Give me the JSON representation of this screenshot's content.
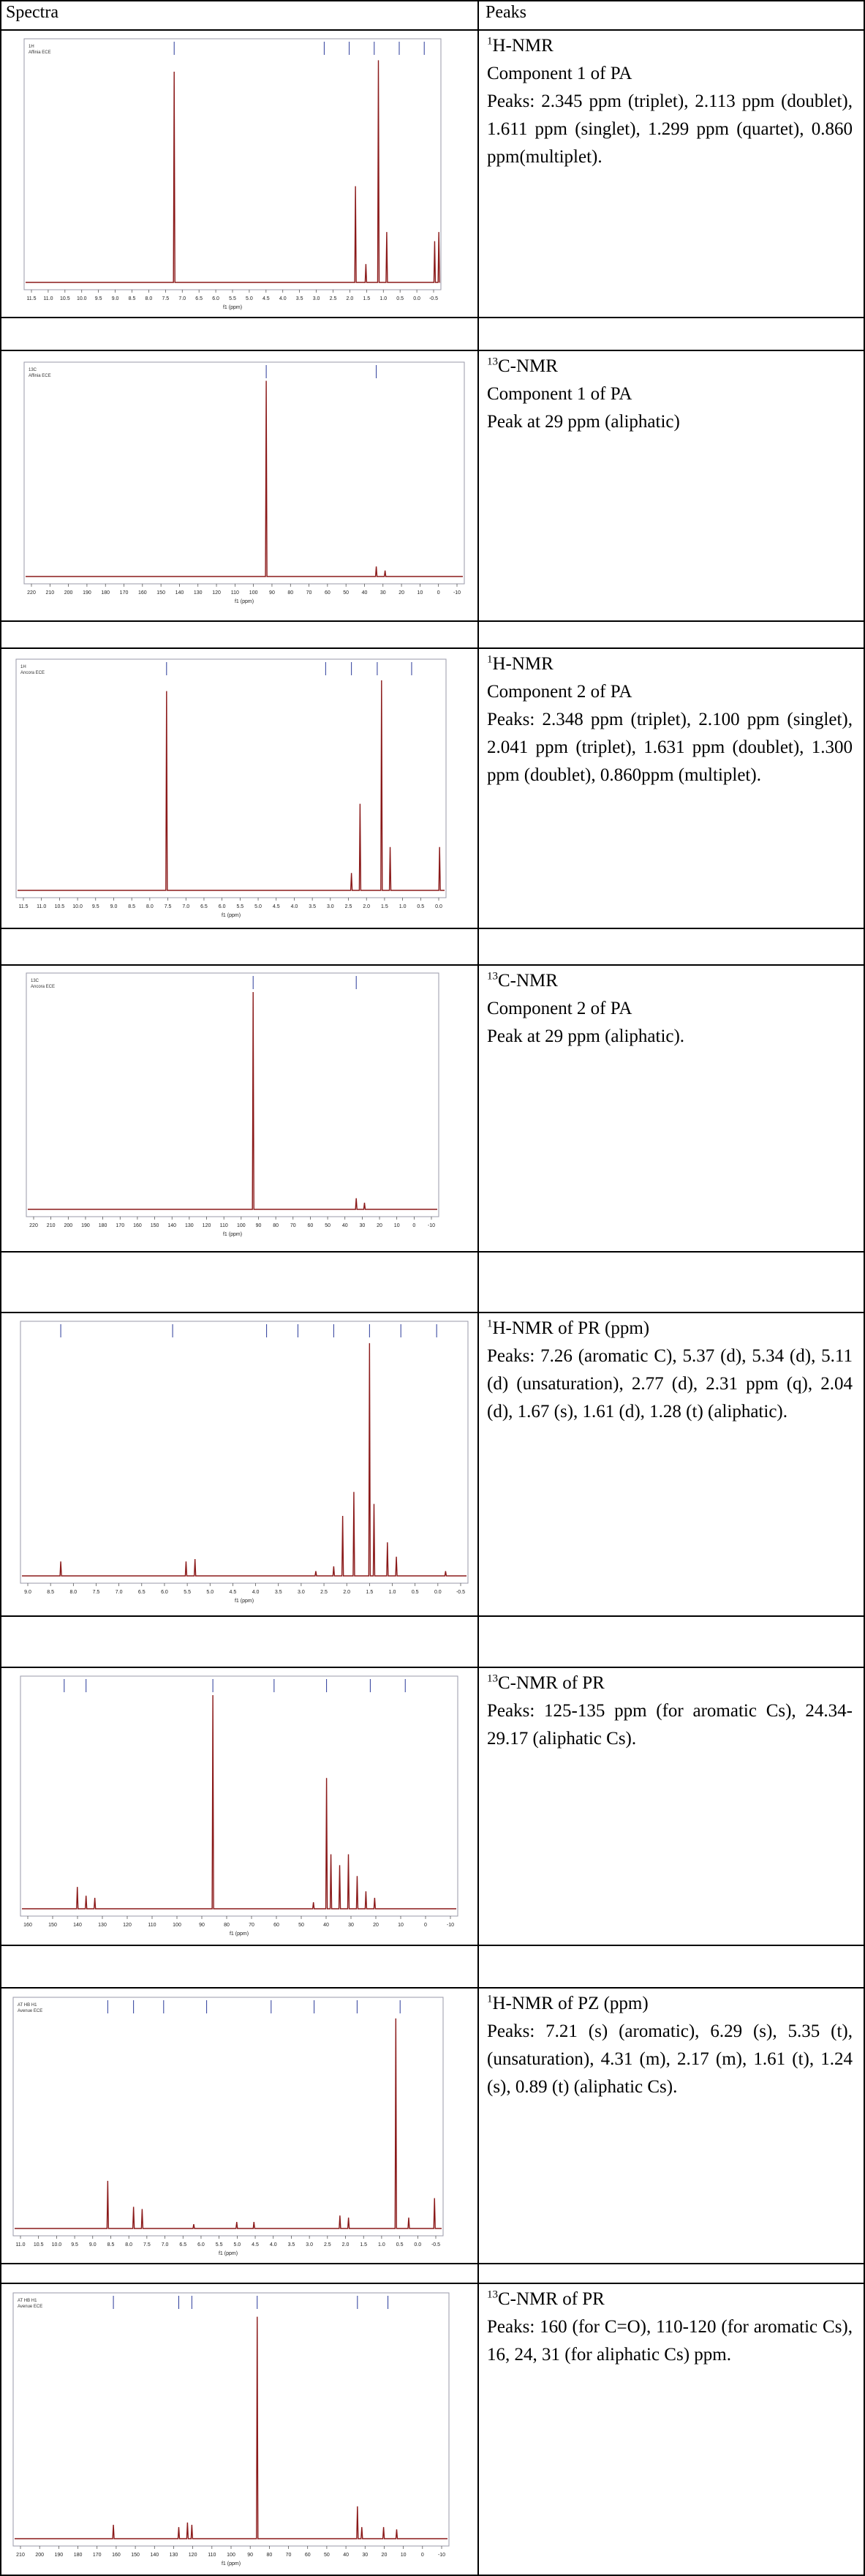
{
  "header": {
    "spectra": "Spectra",
    "peaks": "Peaks"
  },
  "rows": [
    {
      "sup": "1",
      "title": "H-NMR",
      "lines": [
        "Component 1 of PA",
        "Peaks: 2.345 ppm (triplet), 2.113 ppm (doublet), 1.611 ppm (singlet), 1.299 ppm (quartet), 0.860 ppm(multiplet)."
      ],
      "label": "1H\nAffinia ECE",
      "xlabel": "f1 (ppm)",
      "ticks": [
        "11.5",
        "11.0",
        "10.5",
        "10.0",
        "9.5",
        "9.0",
        "8.5",
        "8.0",
        "7.5",
        "7.0",
        "6.5",
        "6.0",
        "5.5",
        "5.0",
        "4.5",
        "4.0",
        "3.5",
        "3.0",
        "2.5",
        "2.0",
        "1.5",
        "1.0",
        "0.5",
        "0.0",
        "-0.5"
      ]
    },
    {
      "sup": "13",
      "title": "C-NMR",
      "lines": [
        "Component 1 of PA",
        "Peak at 29 ppm (aliphatic)"
      ],
      "label": "13C\nAffinia ECE",
      "xlabel": "f1 (ppm)",
      "ticks": [
        "220",
        "210",
        "200",
        "190",
        "180",
        "170",
        "160",
        "150",
        "140",
        "130",
        "120",
        "110",
        "100",
        "90",
        "80",
        "70",
        "60",
        "50",
        "40",
        "30",
        "20",
        "10",
        "0",
        "-10"
      ]
    },
    {
      "sup": "1",
      "title": "H-NMR",
      "lines": [
        "Component 2 of PA",
        "Peaks: 2.348 ppm (triplet), 2.100 ppm (singlet), 2.041 ppm (triplet), 1.631 ppm (doublet), 1.300 ppm (doublet), 0.860ppm (multiplet)."
      ],
      "label": "1H\nAncora ECE",
      "xlabel": "f1 (ppm)",
      "ticks": [
        "11.5",
        "11.0",
        "10.5",
        "10.0",
        "9.5",
        "9.0",
        "8.5",
        "8.0",
        "7.5",
        "7.0",
        "6.5",
        "6.0",
        "5.5",
        "5.0",
        "4.5",
        "4.0",
        "3.5",
        "3.0",
        "2.5",
        "2.0",
        "1.5",
        "1.0",
        "0.5",
        "0.0"
      ]
    },
    {
      "sup": "13",
      "title": "C-NMR",
      "lines": [
        "Component 2 of PA",
        "Peak at 29 ppm (aliphatic)."
      ],
      "label": "13C\nAncora ECE",
      "xlabel": "f1 (ppm)",
      "ticks": [
        "220",
        "210",
        "200",
        "190",
        "180",
        "170",
        "160",
        "150",
        "140",
        "130",
        "120",
        "110",
        "100",
        "90",
        "80",
        "70",
        "60",
        "50",
        "40",
        "30",
        "20",
        "10",
        "0",
        "-10"
      ]
    },
    {
      "sup": "1",
      "title": "H-NMR of PR (ppm)",
      "lines": [
        "Peaks: 7.26 (aromatic C), 5.37 (d), 5.34 (d), 5.11 (d) (unsaturation), 2.77 (d), 2.31 ppm (q), 2.04 (d), 1.67 (s), 1.61 (d), 1.28 (t) (aliphatic)."
      ],
      "label": "",
      "xlabel": "f1 (ppm)",
      "ticks": [
        "9.0",
        "8.5",
        "8.0",
        "7.5",
        "7.0",
        "6.5",
        "6.0",
        "5.5",
        "5.0",
        "4.5",
        "4.0",
        "3.5",
        "3.0",
        "2.5",
        "2.0",
        "1.5",
        "1.0",
        "0.5",
        "0.0",
        "-0.5"
      ]
    },
    {
      "sup": "13",
      "title": "C-NMR of PR",
      "lines": [
        "Peaks: 125-135 ppm (for aromatic Cs), 24.34-29.17 (aliphatic Cs)."
      ],
      "label": "",
      "xlabel": "f1 (ppm)",
      "ticks": [
        "160",
        "150",
        "140",
        "130",
        "120",
        "110",
        "100",
        "90",
        "80",
        "70",
        "60",
        "50",
        "40",
        "30",
        "20",
        "10",
        "0",
        "-10"
      ]
    },
    {
      "sup": "1",
      "title": "H-NMR of PZ (ppm)",
      "lines": [
        "Peaks: 7.21 (s) (aromatic), 6.29 (s), 5.35 (t), (unsaturation), 4.31 (m), 2.17 (m), 1.61 (t), 1.24 (s), 0.89 (t) (aliphatic Cs)."
      ],
      "label": "AT HB H1\nAvenue ECE",
      "xlabel": "f1 (ppm)",
      "ticks": [
        "11.0",
        "10.5",
        "10.0",
        "9.5",
        "9.0",
        "8.5",
        "8.0",
        "7.5",
        "7.0",
        "6.5",
        "6.0",
        "5.5",
        "5.0",
        "4.5",
        "4.0",
        "3.5",
        "3.0",
        "2.5",
        "2.0",
        "1.5",
        "1.0",
        "0.5",
        "0.0",
        "-0.5"
      ]
    },
    {
      "sup": "13",
      "title": "C-NMR of PR",
      "lines": [
        "Peaks: 160 (for C=O), 110-120 (for aromatic Cs), 16, 24, 31 (for aliphatic Cs) ppm."
      ],
      "label": "AT HB H1\nAvenue ECE",
      "xlabel": "f1 (ppm)",
      "ticks": [
        "210",
        "200",
        "190",
        "180",
        "170",
        "160",
        "150",
        "140",
        "130",
        "120",
        "110",
        "100",
        "90",
        "80",
        "70",
        "60",
        "50",
        "40",
        "30",
        "20",
        "10",
        "0",
        "-10"
      ]
    }
  ],
  "colors": {
    "spectrum": "#8b1a1a",
    "frame": "#9a9aa8",
    "annot": "#2a3a9a",
    "rule": "#000000"
  }
}
